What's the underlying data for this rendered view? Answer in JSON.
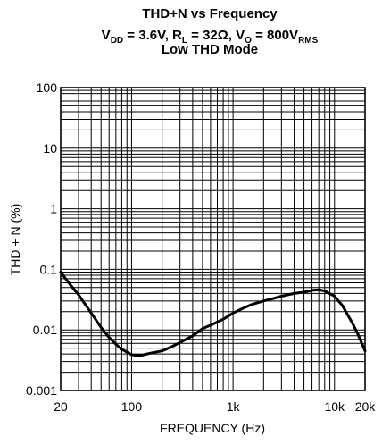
{
  "chart_data": {
    "type": "line",
    "title_lines": [
      "THD+N vs Frequency",
      "V_DD = 3.6V, R_L = 32Ω, V_O = 800V_RMS",
      "Low THD Mode"
    ],
    "xlabel": "FREQUENCY (Hz)",
    "ylabel": "THD + N (%)",
    "x_scale": "log",
    "y_scale": "log",
    "xlim": [
      20,
      20000
    ],
    "ylim": [
      0.001,
      100
    ],
    "x_ticks": [
      {
        "value": 20,
        "label": "20"
      },
      {
        "value": 100,
        "label": "100"
      },
      {
        "value": 1000,
        "label": "1k"
      },
      {
        "value": 10000,
        "label": "10k"
      },
      {
        "value": 20000,
        "label": "20k"
      }
    ],
    "y_ticks": [
      {
        "value": 0.001,
        "label": "0.001"
      },
      {
        "value": 0.01,
        "label": "0.01"
      },
      {
        "value": 0.1,
        "label": "0.1"
      },
      {
        "value": 1,
        "label": "1"
      },
      {
        "value": 10,
        "label": "10"
      },
      {
        "value": 100,
        "label": "100"
      }
    ],
    "grid": true,
    "series": [
      {
        "x": [
          20,
          25,
          30,
          40,
          50,
          60,
          70,
          80,
          90,
          100,
          110,
          125,
          150,
          200,
          250,
          300,
          400,
          500,
          600,
          700,
          800,
          1000,
          1200,
          1500,
          2000,
          2500,
          3000,
          4000,
          5000,
          6000,
          7000,
          8000,
          10000,
          12000,
          15000,
          17000,
          20000
        ],
        "y": [
          0.09,
          0.055,
          0.038,
          0.019,
          0.011,
          0.0075,
          0.0058,
          0.0048,
          0.0043,
          0.0039,
          0.0038,
          0.0038,
          0.0041,
          0.0045,
          0.0053,
          0.0062,
          0.008,
          0.0105,
          0.012,
          0.0135,
          0.015,
          0.019,
          0.022,
          0.026,
          0.03,
          0.033,
          0.036,
          0.04,
          0.042,
          0.045,
          0.046,
          0.044,
          0.036,
          0.025,
          0.013,
          0.0085,
          0.0045
        ]
      }
    ]
  }
}
